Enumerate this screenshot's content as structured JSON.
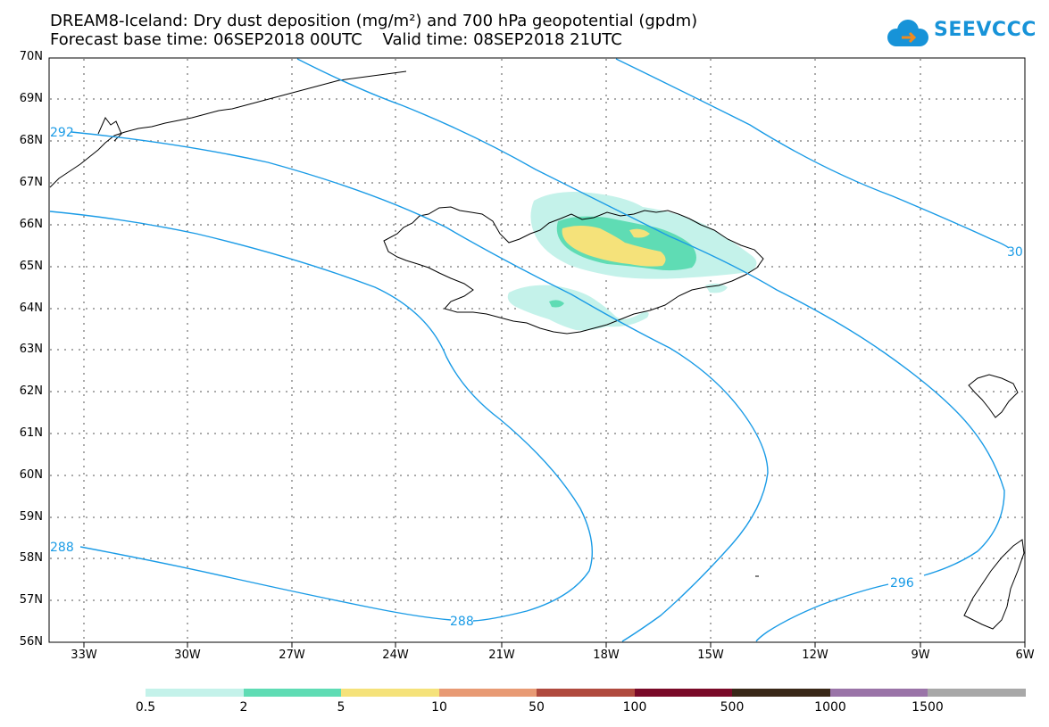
{
  "title": {
    "line1": "DREAM8-Iceland: Dry dust deposition (mg/m²) and 700 hPa geopotential (gpdm)",
    "line2": "Forecast base time: 06SEP2018 00UTC    Valid time: 08SEP2018 21UTC"
  },
  "logo": {
    "text": "SEEVCCC",
    "icon": "cloud-icon",
    "color": "#1793d8"
  },
  "axes": {
    "lat_labels": [
      "70N",
      "69N",
      "68N",
      "67N",
      "66N",
      "65N",
      "64N",
      "63N",
      "62N",
      "61N",
      "60N",
      "59N",
      "58N",
      "57N",
      "56N"
    ],
    "lon_labels": [
      "33W",
      "30W",
      "27W",
      "24W",
      "21W",
      "18W",
      "15W",
      "12W",
      "9W",
      "6W"
    ]
  },
  "contour_labels": {
    "c292": "292",
    "c288_left": "288",
    "c288_bottom": "288",
    "c296": "296",
    "c300": "30"
  },
  "colors": {
    "contour": "#1a9be6",
    "grid": "#555555",
    "coast": "#000000",
    "dust": [
      "#c4f2ea",
      "#5fdcb4",
      "#f5e27a",
      "#e89a74",
      "#b04a3e",
      "#7a0a28",
      "#3a2818",
      "#9a74a8",
      "#a8a8a8"
    ]
  },
  "colorbar": {
    "labels": [
      "0.5",
      "2",
      "5",
      "10",
      "50",
      "100",
      "500",
      "1000",
      "1500"
    ]
  }
}
